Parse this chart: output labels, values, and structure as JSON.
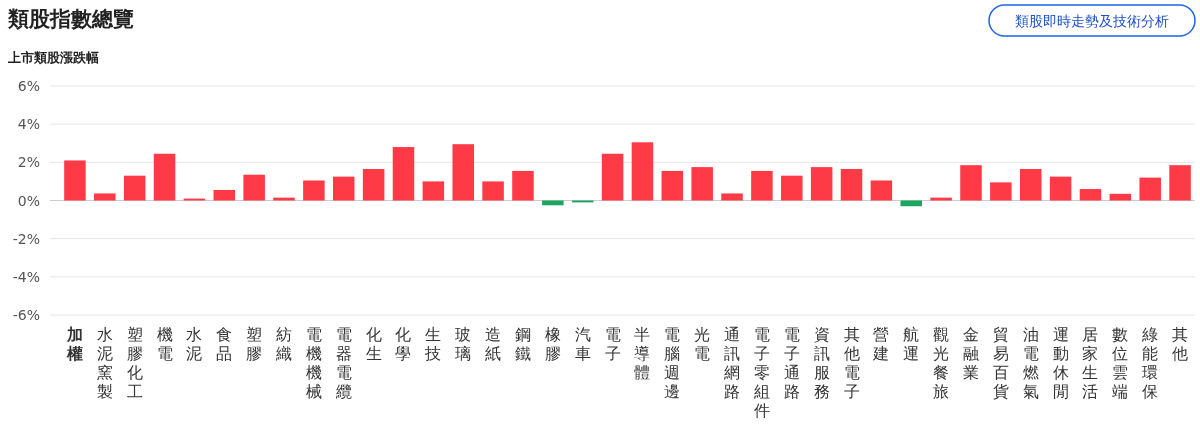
{
  "chart_data": {
    "type": "bar",
    "title": "類股指數總覽",
    "subtitle": "上市類股漲跌幅",
    "annotations": [
      "類股即時走勢及技術分析"
    ],
    "categories": [
      "加權",
      "水泥窯製",
      "塑膠化工",
      "機電",
      "水泥",
      "食品",
      "塑膠",
      "紡織",
      "電機機械",
      "電器電纜",
      "化生",
      "化學",
      "生技",
      "玻璃",
      "造紙",
      "鋼鐵",
      "橡膠",
      "汽車",
      "電子",
      "半導體",
      "電腦週邊",
      "光電",
      "通訊網路",
      "電子零組件",
      "電子通路",
      "資訊服務",
      "其他電子",
      "營建",
      "航運",
      "觀光餐旅",
      "金融業",
      "貿易百貨",
      "油電燃氣",
      "運動休閒",
      "居家生活",
      "數位雲端",
      "綠能環保",
      "其他"
    ],
    "values": [
      2.1,
      0.37,
      1.3,
      2.45,
      0.1,
      0.55,
      1.35,
      0.15,
      1.05,
      1.25,
      1.65,
      2.8,
      1.0,
      2.95,
      1.0,
      1.55,
      -0.25,
      -0.1,
      2.45,
      3.05,
      1.55,
      1.75,
      0.37,
      1.55,
      1.3,
      1.75,
      1.65,
      1.05,
      -0.3,
      0.15,
      1.85,
      0.95,
      1.65,
      1.25,
      0.6,
      0.35,
      1.2,
      1.85
    ],
    "colors": [
      "#fe3a47",
      "#fe3a47",
      "#fe3a47",
      "#fe3a47",
      "#fe3a47",
      "#fe3a47",
      "#fe3a47",
      "#fe3a47",
      "#fe3a47",
      "#fe3a47",
      "#fe3a47",
      "#fe3a47",
      "#fe3a47",
      "#fe3a47",
      "#fe3a47",
      "#fe3a47",
      "#1ca55e",
      "#1ca55e",
      "#fe3a47",
      "#fe3a47",
      "#fe3a47",
      "#fe3a47",
      "#fe3a47",
      "#fe3a47",
      "#fe3a47",
      "#fe3a47",
      "#fe3a47",
      "#fe3a47",
      "#1ca55e",
      "#fe3a47",
      "#fe3a47",
      "#fe3a47",
      "#fe3a47",
      "#fe3a47",
      "#fe3a47",
      "#fe3a47",
      "#fe3a47",
      "#fe3a47"
    ],
    "ylim": [
      -6,
      6
    ],
    "yticks": [
      {
        "value": -6,
        "label": "-6%"
      },
      {
        "value": -4,
        "label": "-4%"
      },
      {
        "value": -2,
        "label": "-2%"
      },
      {
        "value": 0,
        "label": "0%"
      },
      {
        "value": 2,
        "label": "2%"
      },
      {
        "value": 4,
        "label": "4%"
      },
      {
        "value": 6,
        "label": "6%"
      }
    ],
    "grid": "y"
  }
}
